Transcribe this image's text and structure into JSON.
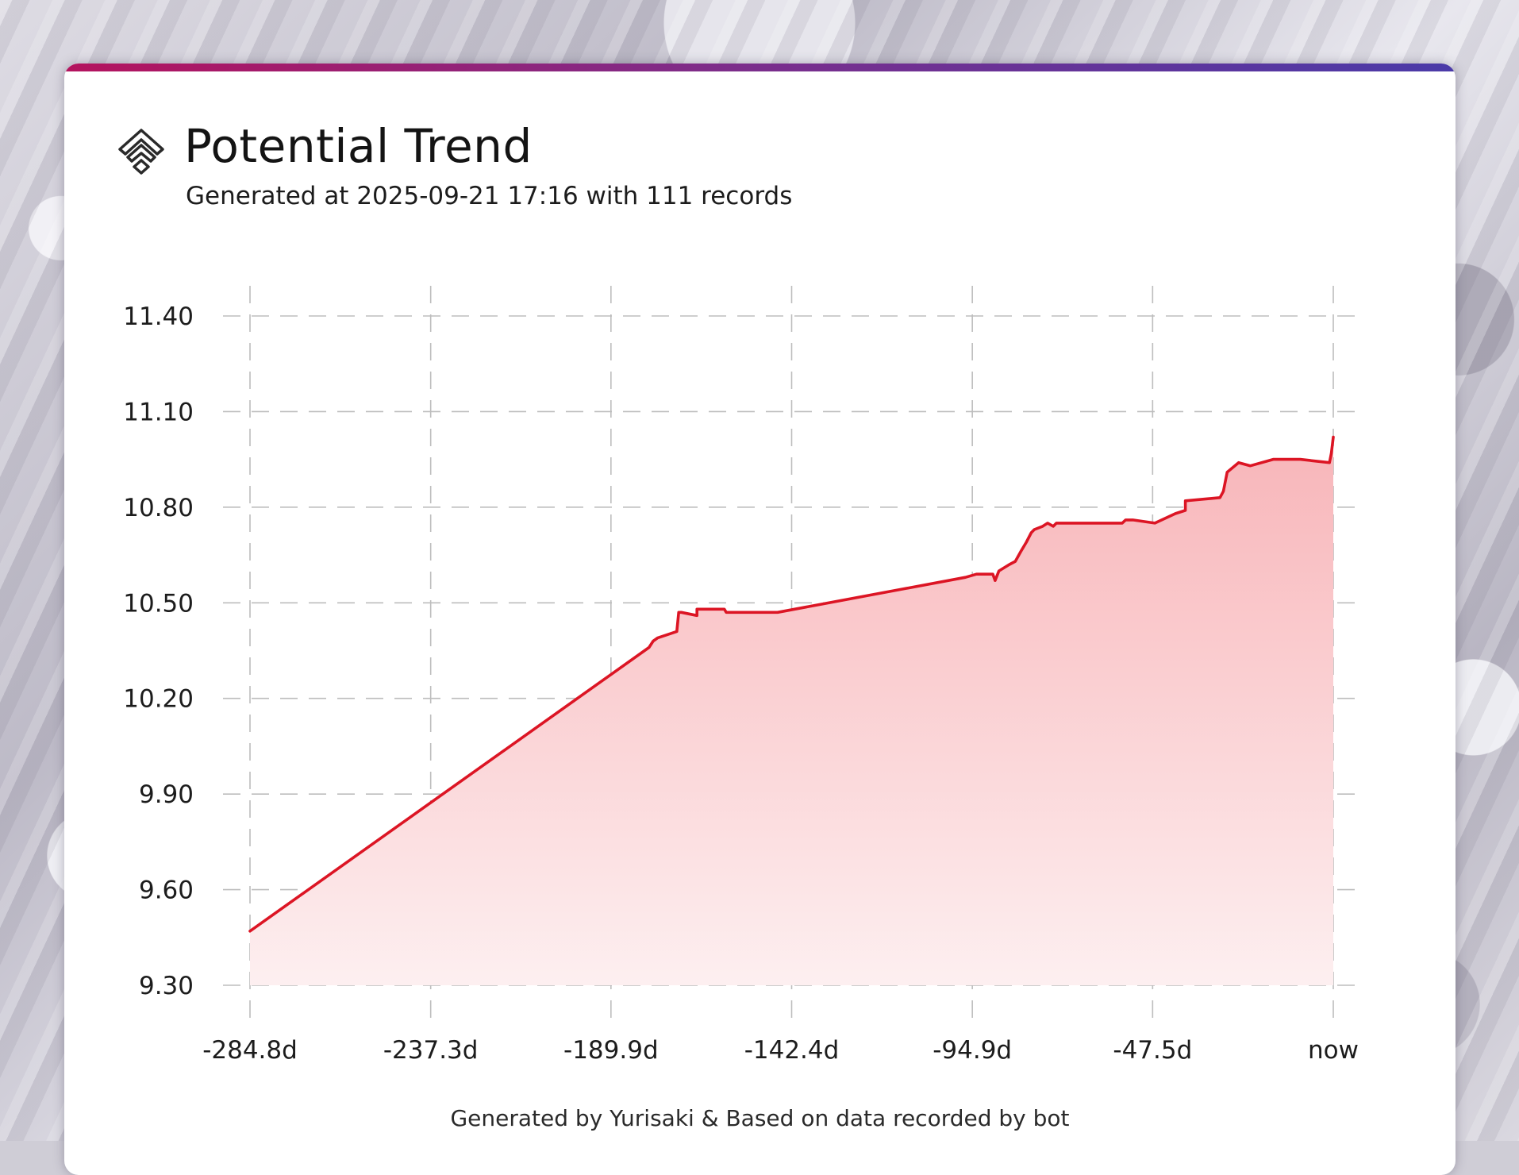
{
  "header": {
    "title": "Potential Trend",
    "subtitle": "Generated at 2025-09-21 17:16 with 111 records",
    "icon": "chevrons-up-icon"
  },
  "footer": {
    "text": "Generated by Yurisaki & Based on data recorded by bot"
  },
  "colors": {
    "line": "#dc1524",
    "fill_top": "#f8b5b9",
    "fill_bottom": "#fdeff0",
    "grid": "#bdbdbd",
    "accent_start": "#b4135e",
    "accent_end": "#4a3aa8"
  },
  "chart_data": {
    "type": "area",
    "title": "",
    "xlabel": "",
    "ylabel": "",
    "x_tick_labels": [
      "-284.8d",
      "-237.3d",
      "-189.9d",
      "-142.4d",
      "-94.9d",
      "-47.5d",
      "now"
    ],
    "x_ticks": [
      -284.8,
      -237.3,
      -189.9,
      -142.4,
      -94.9,
      -47.5,
      0
    ],
    "y_tick_labels": [
      "9.30",
      "9.60",
      "9.90",
      "10.20",
      "10.50",
      "10.80",
      "11.10",
      "11.40"
    ],
    "y_ticks": [
      9.3,
      9.6,
      9.9,
      10.2,
      10.5,
      10.8,
      11.1,
      11.4
    ],
    "xlim": [
      -284.8,
      0
    ],
    "ylim": [
      9.3,
      11.4
    ],
    "grid": true,
    "legend": "none",
    "series": [
      {
        "values": [
          [
            -284.8,
            9.47
          ],
          [
            -179.9,
            10.36
          ],
          [
            -178.8,
            10.38
          ],
          [
            -177.6,
            10.39
          ],
          [
            -172.6,
            10.41
          ],
          [
            -172.1,
            10.47
          ],
          [
            -171.4,
            10.47
          ],
          [
            -167.3,
            10.46
          ],
          [
            -167.3,
            10.48
          ],
          [
            -162.4,
            10.48
          ],
          [
            -160.1,
            10.48
          ],
          [
            -159.6,
            10.47
          ],
          [
            -146.1,
            10.47
          ],
          [
            -96.7,
            10.58
          ],
          [
            -93.8,
            10.59
          ],
          [
            -91.7,
            10.59
          ],
          [
            -89.5,
            10.59
          ],
          [
            -88.9,
            10.57
          ],
          [
            -87.9,
            10.6
          ],
          [
            -85.2,
            10.62
          ],
          [
            -83.6,
            10.63
          ],
          [
            -82.2,
            10.66
          ],
          [
            -80.7,
            10.69
          ],
          [
            -79.4,
            10.72
          ],
          [
            -78.6,
            10.73
          ],
          [
            -76.4,
            10.74
          ],
          [
            -75.1,
            10.75
          ],
          [
            -73.6,
            10.74
          ],
          [
            -72.8,
            10.75
          ],
          [
            -61.4,
            10.75
          ],
          [
            -55.5,
            10.75
          ],
          [
            -54.6,
            10.76
          ],
          [
            -52.7,
            10.76
          ],
          [
            -46.9,
            10.75
          ],
          [
            -41.5,
            10.78
          ],
          [
            -38.9,
            10.79
          ],
          [
            -38.9,
            10.82
          ],
          [
            -29.8,
            10.83
          ],
          [
            -28.9,
            10.85
          ],
          [
            -27.9,
            10.91
          ],
          [
            -24.9,
            10.94
          ],
          [
            -21.8,
            10.93
          ],
          [
            -15.8,
            10.95
          ],
          [
            -8.7,
            10.95
          ],
          [
            -1.0,
            10.94
          ],
          [
            -0.5,
            10.97
          ],
          [
            0.0,
            11.02
          ]
        ]
      }
    ]
  }
}
